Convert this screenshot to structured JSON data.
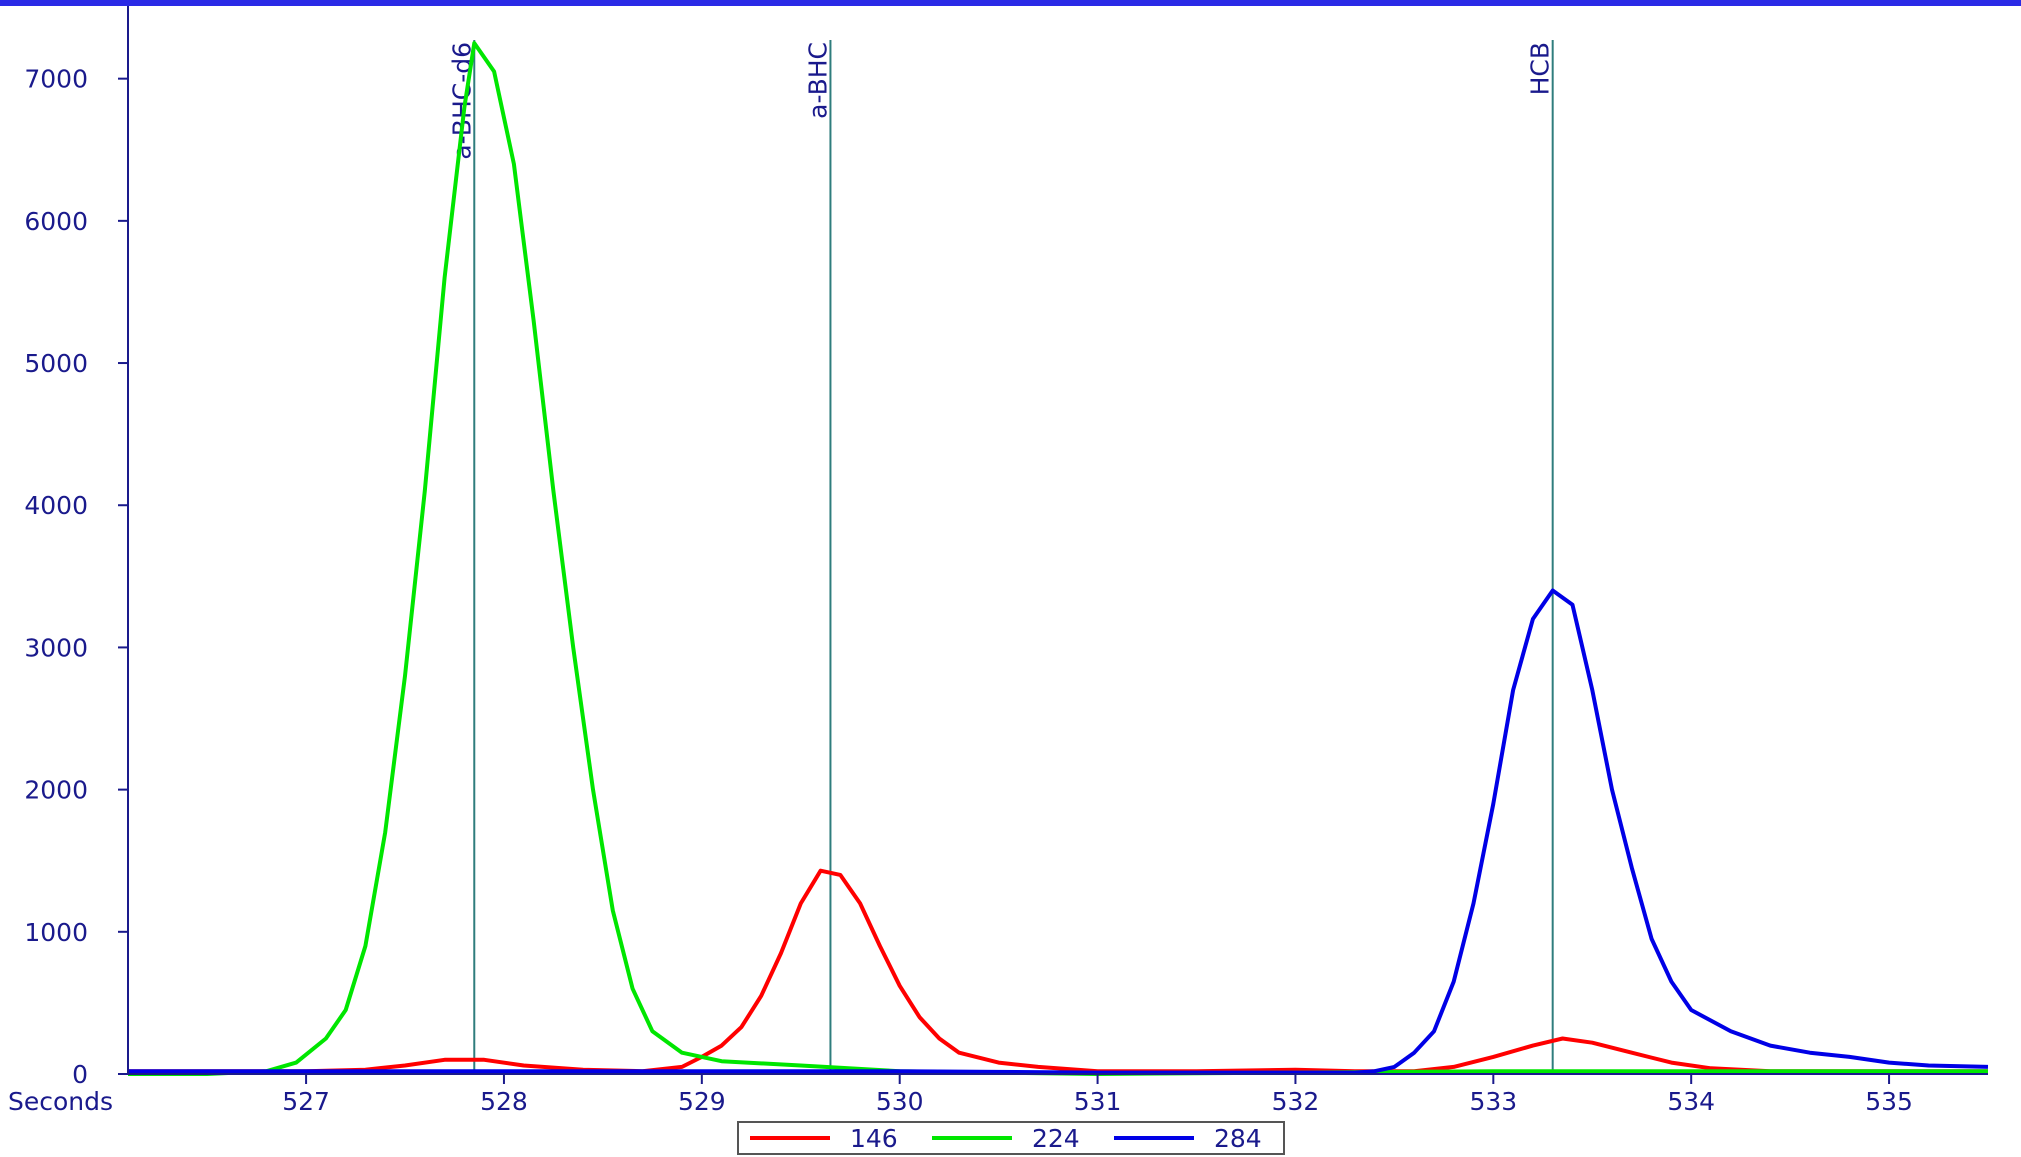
{
  "colors": {
    "frame": "#2a2ae6",
    "axis": "#1a1a8c",
    "text": "#1a1a8c",
    "marker_line": "#2f7d7d"
  },
  "chart_data": {
    "type": "line",
    "title": "",
    "xlabel": "Seconds",
    "ylabel": "",
    "xlim": [
      526.1,
      535.5
    ],
    "ylim": [
      0,
      7300
    ],
    "x_ticks": [
      527,
      528,
      529,
      530,
      531,
      532,
      533,
      534,
      535
    ],
    "y_ticks": [
      0,
      1000,
      2000,
      3000,
      4000,
      5000,
      6000,
      7000
    ],
    "grid": false,
    "legend_position": "bottom-center",
    "markers": [
      {
        "label": "a-BHC-d6",
        "x": 527.85
      },
      {
        "label": "a-BHC",
        "x": 529.65
      },
      {
        "label": "HCB",
        "x": 533.3
      }
    ],
    "series": [
      {
        "name": "146",
        "color": "#ff0000",
        "points": [
          [
            526.1,
            20
          ],
          [
            526.5,
            20
          ],
          [
            527.0,
            20
          ],
          [
            527.3,
            30
          ],
          [
            527.5,
            60
          ],
          [
            527.7,
            100
          ],
          [
            527.9,
            100
          ],
          [
            528.1,
            60
          ],
          [
            528.4,
            30
          ],
          [
            528.7,
            20
          ],
          [
            528.9,
            50
          ],
          [
            529.0,
            120
          ],
          [
            529.1,
            200
          ],
          [
            529.2,
            330
          ],
          [
            529.3,
            550
          ],
          [
            529.4,
            850
          ],
          [
            529.5,
            1200
          ],
          [
            529.6,
            1430
          ],
          [
            529.7,
            1400
          ],
          [
            529.8,
            1200
          ],
          [
            529.9,
            900
          ],
          [
            530.0,
            620
          ],
          [
            530.1,
            400
          ],
          [
            530.2,
            250
          ],
          [
            530.3,
            150
          ],
          [
            530.5,
            80
          ],
          [
            530.7,
            50
          ],
          [
            531.0,
            20
          ],
          [
            531.5,
            20
          ],
          [
            532.0,
            30
          ],
          [
            532.3,
            20
          ],
          [
            532.6,
            20
          ],
          [
            532.8,
            50
          ],
          [
            533.0,
            120
          ],
          [
            533.2,
            200
          ],
          [
            533.35,
            250
          ],
          [
            533.5,
            220
          ],
          [
            533.7,
            150
          ],
          [
            533.9,
            80
          ],
          [
            534.1,
            40
          ],
          [
            534.4,
            20
          ],
          [
            535.0,
            20
          ],
          [
            535.5,
            20
          ]
        ]
      },
      {
        "name": "224",
        "color": "#00e600",
        "points": [
          [
            526.1,
            0
          ],
          [
            526.5,
            0
          ],
          [
            526.8,
            20
          ],
          [
            526.95,
            80
          ],
          [
            527.1,
            250
          ],
          [
            527.2,
            450
          ],
          [
            527.3,
            900
          ],
          [
            527.4,
            1700
          ],
          [
            527.5,
            2800
          ],
          [
            527.6,
            4100
          ],
          [
            527.7,
            5600
          ],
          [
            527.8,
            6800
          ],
          [
            527.85,
            7250
          ],
          [
            527.95,
            7050
          ],
          [
            528.05,
            6400
          ],
          [
            528.15,
            5300
          ],
          [
            528.25,
            4100
          ],
          [
            528.35,
            3000
          ],
          [
            528.45,
            2000
          ],
          [
            528.55,
            1150
          ],
          [
            528.65,
            600
          ],
          [
            528.75,
            300
          ],
          [
            528.9,
            150
          ],
          [
            529.1,
            90
          ],
          [
            529.5,
            60
          ],
          [
            530.0,
            20
          ],
          [
            530.5,
            10
          ],
          [
            531.0,
            0
          ],
          [
            532.0,
            10
          ],
          [
            533.0,
            20
          ],
          [
            534.0,
            20
          ],
          [
            535.5,
            20
          ]
        ]
      },
      {
        "name": "284",
        "color": "#0000e6",
        "points": [
          [
            526.1,
            20
          ],
          [
            526.5,
            20
          ],
          [
            527.0,
            20
          ],
          [
            528.0,
            20
          ],
          [
            529.0,
            20
          ],
          [
            530.0,
            20
          ],
          [
            531.0,
            10
          ],
          [
            532.0,
            10
          ],
          [
            532.3,
            10
          ],
          [
            532.4,
            20
          ],
          [
            532.5,
            50
          ],
          [
            532.6,
            150
          ],
          [
            532.7,
            300
          ],
          [
            532.8,
            650
          ],
          [
            532.9,
            1200
          ],
          [
            533.0,
            1900
          ],
          [
            533.1,
            2700
          ],
          [
            533.2,
            3200
          ],
          [
            533.3,
            3400
          ],
          [
            533.4,
            3300
          ],
          [
            533.5,
            2700
          ],
          [
            533.6,
            2000
          ],
          [
            533.7,
            1450
          ],
          [
            533.8,
            950
          ],
          [
            533.9,
            650
          ],
          [
            534.0,
            450
          ],
          [
            534.2,
            300
          ],
          [
            534.4,
            200
          ],
          [
            534.6,
            150
          ],
          [
            534.8,
            120
          ],
          [
            535.0,
            80
          ],
          [
            535.2,
            60
          ],
          [
            535.5,
            50
          ]
        ]
      }
    ]
  }
}
